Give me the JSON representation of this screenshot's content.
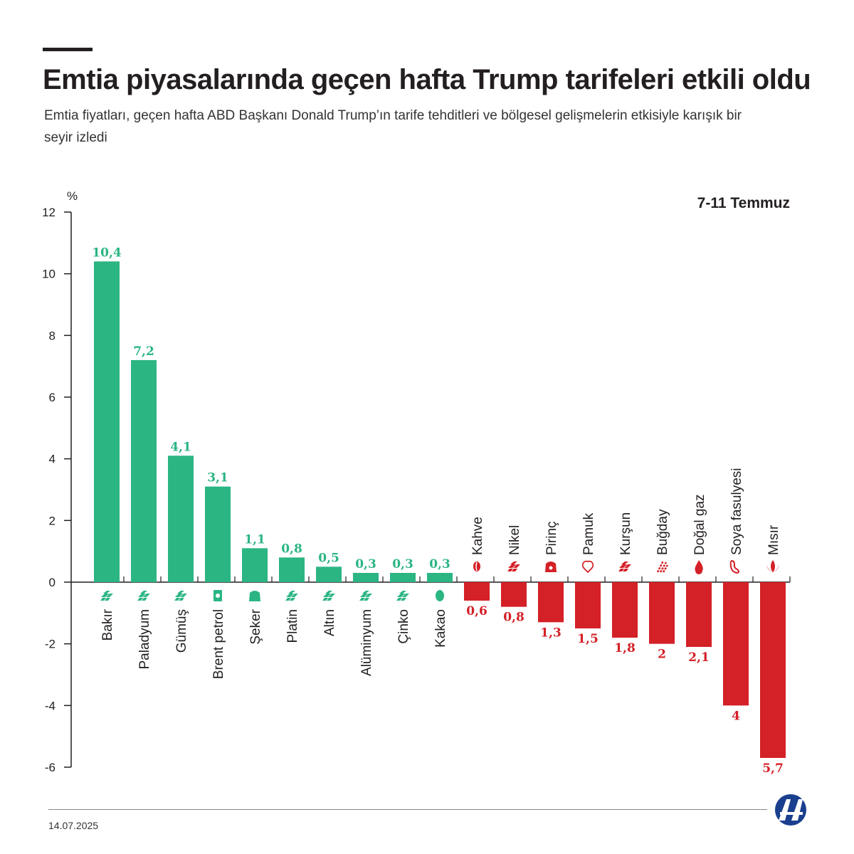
{
  "header": {
    "title": "Emtia piyasalarında geçen hafta Trump tarifeleri etkili oldu",
    "subtitle": "Emtia fiyatları, geçen hafta ABD Başkanı Donald Trump’ın tarife tehditleri ve bölgesel gelişmelerin etkisiyle karışık bir seyir izledi",
    "period": "7-11 Temmuz"
  },
  "footer": {
    "date": "14.07.2025",
    "logo_text": "AA"
  },
  "colors": {
    "positive": "#2bb583",
    "negative": "#d42027",
    "text": "#231f20"
  },
  "chart_data": {
    "type": "bar",
    "ylabel": "%",
    "ylim": [
      -6,
      12
    ],
    "yticks": [
      12,
      10,
      8,
      6,
      4,
      2,
      0,
      -2,
      -4,
      -6
    ],
    "grid": false,
    "categories": [
      "Bakır",
      "Paladyum",
      "Gümüş",
      "Brent petrol",
      "Şeker",
      "Platin",
      "Altın",
      "Alüminyum",
      "Çinko",
      "Kakao",
      "Kahve",
      "Nikel",
      "Pirinç",
      "Pamuk",
      "Kurşun",
      "Buğday",
      "Doğal gaz",
      "Soya fasulyesi",
      "Mısır"
    ],
    "values": [
      10.4,
      7.2,
      4.1,
      3.1,
      1.1,
      0.8,
      0.5,
      0.3,
      0.3,
      0.3,
      -0.6,
      -0.8,
      -1.3,
      -1.5,
      -1.8,
      -2,
      -2.1,
      -4,
      -5.7
    ],
    "data_labels": [
      "10,4",
      "7,2",
      "4,1",
      "3,1",
      "1,1",
      "0,8",
      "0,5",
      "0,3",
      "0,3",
      "0,3",
      "0,6",
      "0,8",
      "1,3",
      "1,5",
      "1,8",
      "2",
      "2,1",
      "4",
      "5,7"
    ],
    "icons": [
      "metal-bars-icon",
      "metal-bars-icon",
      "metal-bars-icon",
      "oil-barrel-icon",
      "sugar-sack-icon",
      "metal-bars-icon",
      "metal-bars-icon",
      "metal-bars-icon",
      "metal-bars-icon",
      "cocoa-pod-icon",
      "coffee-bean-icon",
      "metal-bars-icon",
      "rice-sack-icon",
      "cotton-icon",
      "metal-bars-icon",
      "wheat-icon",
      "gas-flame-icon",
      "soybean-icon",
      "corn-icon"
    ]
  }
}
